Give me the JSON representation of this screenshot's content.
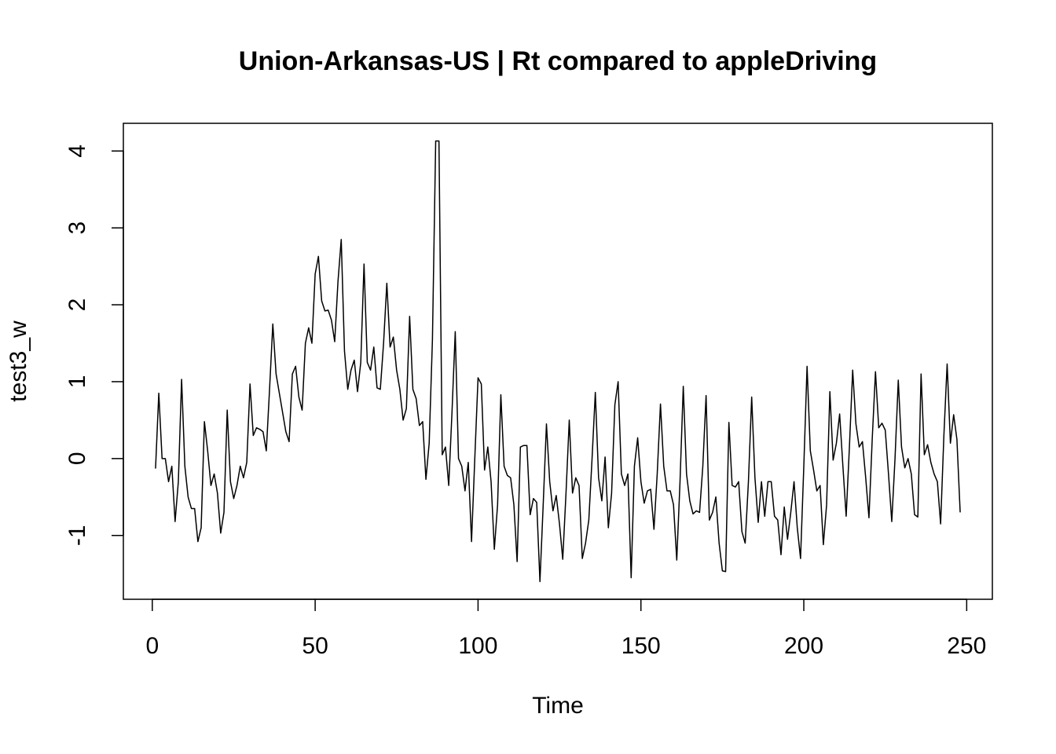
{
  "chart_data": {
    "type": "line",
    "title": "Union-Arkansas-US | Rt compared to appleDriving",
    "x_label": "Time",
    "y_label": "test3_w",
    "color": "#000000",
    "x": [
      1,
      2,
      3,
      4,
      5,
      6,
      7,
      8,
      9,
      10,
      11,
      12,
      13,
      14,
      15,
      16,
      17,
      18,
      19,
      20,
      21,
      22,
      23,
      24,
      25,
      26,
      27,
      28,
      29,
      30,
      31,
      32,
      33,
      34,
      35,
      36,
      37,
      38,
      39,
      40,
      41,
      42,
      43,
      44,
      45,
      46,
      47,
      48,
      49,
      50,
      51,
      52,
      53,
      54,
      55,
      56,
      57,
      58,
      59,
      60,
      61,
      62,
      63,
      64,
      65,
      66,
      67,
      68,
      69,
      70,
      71,
      72,
      73,
      74,
      75,
      76,
      77,
      78,
      79,
      80,
      81,
      82,
      83,
      84,
      85,
      86,
      87,
      88,
      89,
      90,
      91,
      92,
      93,
      94,
      95,
      96,
      97,
      98,
      99,
      100,
      101,
      102,
      103,
      104,
      105,
      106,
      107,
      108,
      109,
      110,
      111,
      112,
      113,
      114,
      115,
      116,
      117,
      118,
      119,
      120,
      121,
      122,
      123,
      124,
      125,
      126,
      127,
      128,
      129,
      130,
      131,
      132,
      133,
      134,
      135,
      136,
      137,
      138,
      139,
      140,
      141,
      142,
      143,
      144,
      145,
      146,
      147,
      148,
      149,
      150,
      151,
      152,
      153,
      154,
      155,
      156,
      157,
      158,
      159,
      160,
      161,
      162,
      163,
      164,
      165,
      166,
      167,
      168,
      169,
      170,
      171,
      172,
      173,
      174,
      175,
      176,
      177,
      178,
      179,
      180,
      181,
      182,
      183,
      184,
      185,
      186,
      187,
      188,
      189,
      190,
      191,
      192,
      193,
      194,
      195,
      196,
      197,
      198,
      199,
      200,
      201,
      202,
      203,
      204,
      205,
      206,
      207,
      208,
      209,
      210,
      211,
      212,
      213,
      214,
      215,
      216,
      217,
      218,
      219,
      220,
      221,
      222,
      223,
      224,
      225,
      226,
      227,
      228,
      229,
      230,
      231,
      232,
      233,
      234,
      235,
      236,
      237,
      238,
      239,
      240,
      241,
      242,
      243,
      244,
      245,
      246,
      247,
      248
    ],
    "values": [
      -0.13,
      0.85,
      0,
      0,
      -0.3,
      -0.1,
      -0.82,
      -0.3,
      1.03,
      -0.1,
      -0.5,
      -0.65,
      -0.65,
      -1.08,
      -0.9,
      0.48,
      0.1,
      -0.35,
      -0.2,
      -0.45,
      -0.97,
      -0.7,
      0.63,
      -0.3,
      -0.52,
      -0.35,
      -0.1,
      -0.25,
      -0.05,
      0.97,
      0.3,
      0.4,
      0.38,
      0.35,
      0.1,
      0.9,
      1.75,
      1.1,
      0.85,
      0.6,
      0.35,
      0.22,
      1.1,
      1.2,
      0.8,
      0.63,
      1.5,
      1.7,
      1.5,
      2.4,
      2.63,
      2.05,
      1.92,
      1.93,
      1.8,
      1.52,
      2.3,
      2.85,
      1.4,
      0.9,
      1.15,
      1.28,
      0.87,
      1.25,
      2.53,
      1.25,
      1.15,
      1.45,
      0.92,
      0.9,
      1.5,
      2.28,
      1.45,
      1.58,
      1.15,
      0.9,
      0.5,
      0.65,
      1.85,
      0.9,
      0.78,
      0.43,
      0.48,
      -0.27,
      0.2,
      1.55,
      4.13,
      4.13,
      0.05,
      0.15,
      -0.35,
      0.6,
      1.65,
      0,
      -0.1,
      -0.42,
      -0.05,
      -1.08,
      0,
      1.05,
      0.97,
      -0.15,
      0.15,
      -0.3,
      -1.18,
      -0.6,
      0.83,
      -0.1,
      -0.22,
      -0.25,
      -0.6,
      -1.34,
      0.15,
      0.17,
      0.17,
      -0.73,
      -0.52,
      -0.57,
      -1.6,
      -0.6,
      0.45,
      -0.3,
      -0.68,
      -0.48,
      -0.85,
      -1.31,
      -0.45,
      0.5,
      -0.45,
      -0.25,
      -0.35,
      -1.3,
      -1.1,
      -0.8,
      0,
      0.86,
      -0.25,
      -0.55,
      0.02,
      -0.9,
      -0.45,
      0.7,
      1,
      -0.2,
      -0.35,
      -0.2,
      -1.55,
      -0.1,
      0.27,
      -0.3,
      -0.58,
      -0.42,
      -0.4,
      -0.92,
      -0.2,
      0.71,
      -0.1,
      -0.42,
      -0.42,
      -0.6,
      -1.32,
      -0.3,
      0.94,
      -0.2,
      -0.55,
      -0.72,
      -0.68,
      -0.7,
      -0.1,
      0.82,
      -0.8,
      -0.7,
      -0.5,
      -1.1,
      -1.46,
      -1.47,
      0.47,
      -0.35,
      -0.37,
      -0.3,
      -0.95,
      -1.1,
      -0.3,
      0.8,
      -0.25,
      -0.83,
      -0.3,
      -0.75,
      -0.3,
      -0.3,
      -0.75,
      -0.8,
      -1.25,
      -0.63,
      -1.05,
      -0.7,
      -0.3,
      -0.9,
      -1.3,
      -0.1,
      1.2,
      0.1,
      -0.15,
      -0.42,
      -0.35,
      -1.12,
      -0.6,
      0.87,
      -0.02,
      0.2,
      0.58,
      -0.1,
      -0.75,
      0.15,
      1.15,
      0.45,
      0.15,
      0.22,
      -0.25,
      -0.77,
      0.25,
      1.13,
      0.4,
      0.46,
      0.37,
      -0.2,
      -0.82,
      0,
      1.02,
      0.15,
      -0.12,
      0,
      -0.2,
      -0.73,
      -0.76,
      1.1,
      0.05,
      0.18,
      -0.05,
      -0.2,
      -0.3,
      -0.85,
      0.3,
      1.23,
      0.2,
      0.57,
      0.25,
      -0.7
    ],
    "xlim": [
      -8.88,
      257.88
    ],
    "xticks": [
      0,
      50,
      100,
      150,
      200,
      250
    ],
    "ylim": [
      -1.83,
      4.36
    ],
    "yticks": [
      -1,
      0,
      1,
      2,
      3,
      4
    ]
  }
}
